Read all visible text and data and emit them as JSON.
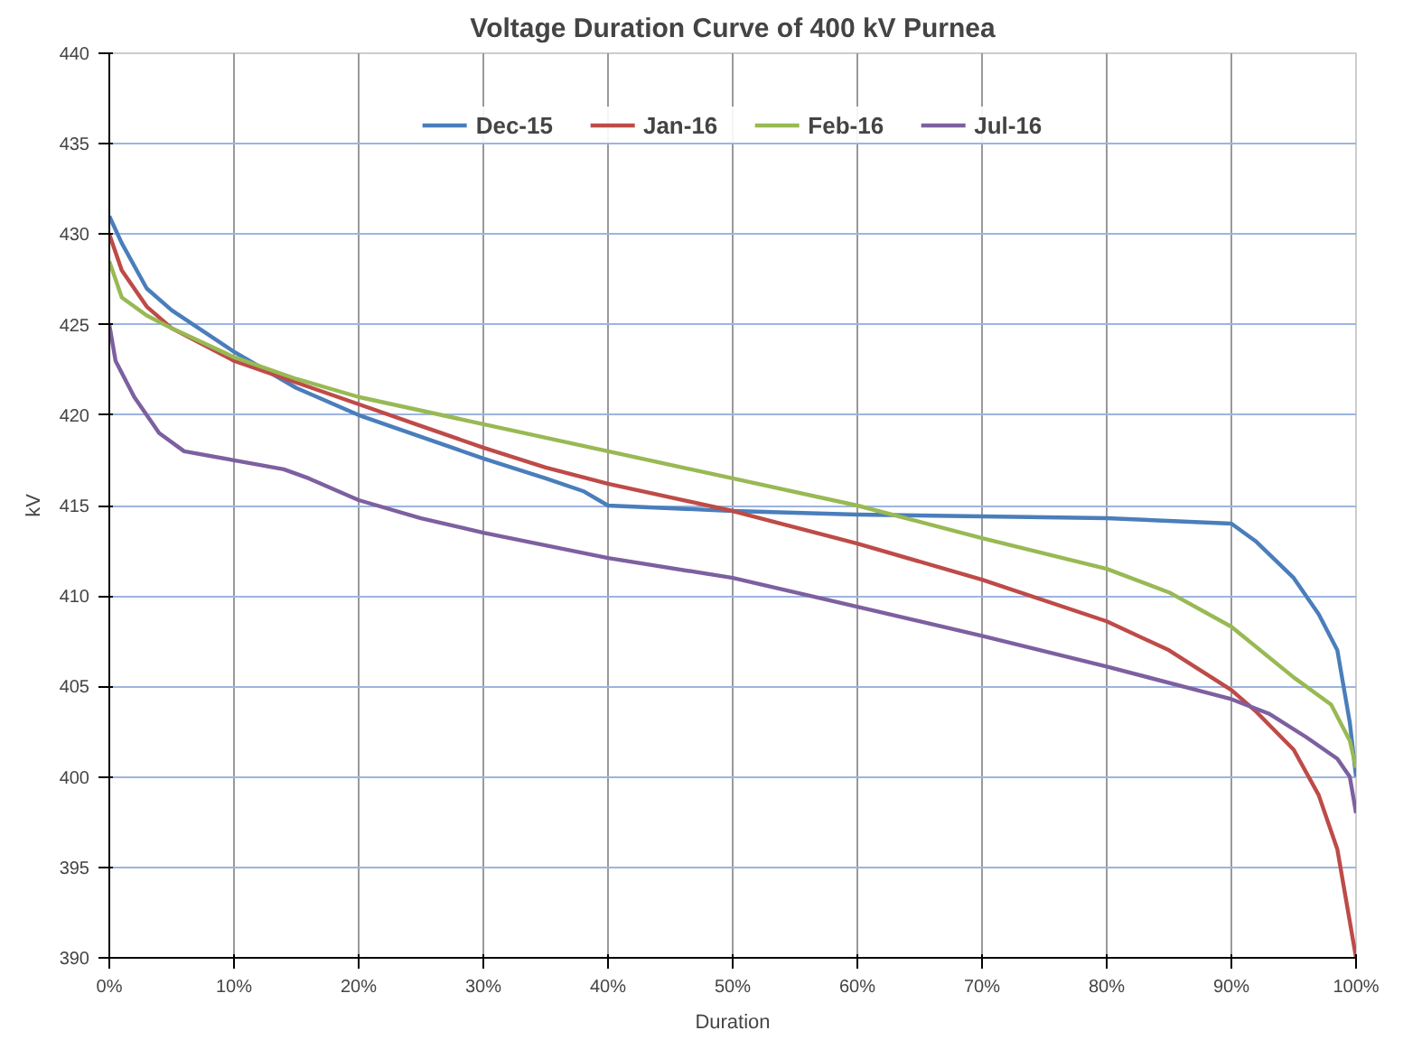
{
  "chart_data": {
    "type": "line",
    "title": "Voltage Duration Curve of 400 kV Purnea",
    "xlabel": "Duration",
    "ylabel": "kV",
    "xlim": [
      0,
      100
    ],
    "ylim": [
      390,
      440
    ],
    "xticks": [
      {
        "value": 0,
        "label": "0%"
      },
      {
        "value": 10,
        "label": "10%"
      },
      {
        "value": 20,
        "label": "20%"
      },
      {
        "value": 30,
        "label": "30%"
      },
      {
        "value": 40,
        "label": "40%"
      },
      {
        "value": 50,
        "label": "50%"
      },
      {
        "value": 60,
        "label": "60%"
      },
      {
        "value": 70,
        "label": "70%"
      },
      {
        "value": 80,
        "label": "80%"
      },
      {
        "value": 90,
        "label": "90%"
      },
      {
        "value": 100,
        "label": "100%"
      }
    ],
    "yticks": [
      390,
      395,
      400,
      405,
      410,
      415,
      420,
      425,
      430,
      435,
      440
    ],
    "grid": true,
    "legend": "top",
    "marker": "none",
    "line_style": "solid",
    "series": [
      {
        "name": "Dec-15",
        "color": "#4a7ebb",
        "x": [
          0,
          1,
          3,
          5,
          10,
          15,
          20,
          25,
          30,
          35,
          38,
          40,
          50,
          60,
          70,
          80,
          90,
          92,
          95,
          97,
          98.5,
          99.5,
          100
        ],
        "values": [
          431,
          429.5,
          427,
          425.8,
          423.5,
          421.5,
          420,
          418.8,
          417.6,
          416.5,
          415.8,
          415,
          414.7,
          414.5,
          414.4,
          414.3,
          414,
          413,
          411,
          409,
          407,
          403,
          400
        ]
      },
      {
        "name": "Jan-16",
        "color": "#be4b48",
        "x": [
          0,
          1,
          3,
          5,
          10,
          15,
          20,
          25,
          30,
          35,
          40,
          50,
          60,
          70,
          80,
          85,
          90,
          92,
          95,
          97,
          98.5,
          99.5,
          100
        ],
        "values": [
          430,
          428,
          426,
          424.8,
          423,
          421.8,
          420.6,
          419.4,
          418.2,
          417.1,
          416.2,
          414.7,
          412.9,
          410.9,
          408.6,
          407,
          404.8,
          403.6,
          401.5,
          399,
          396,
          392,
          390
        ]
      },
      {
        "name": "Feb-16",
        "color": "#98b954",
        "x": [
          0,
          1,
          3,
          5,
          10,
          15,
          20,
          30,
          40,
          50,
          60,
          70,
          80,
          85,
          90,
          95,
          98,
          99.5,
          100
        ],
        "values": [
          428.5,
          426.5,
          425.5,
          424.8,
          423.2,
          422,
          421,
          419.5,
          418,
          416.5,
          415,
          413.2,
          411.5,
          410.2,
          408.3,
          405.5,
          404,
          402,
          400.5
        ]
      },
      {
        "name": "Jul-16",
        "color": "#7d60a0",
        "x": [
          0,
          0.5,
          2,
          4,
          6,
          10,
          14,
          16,
          20,
          25,
          30,
          40,
          50,
          60,
          70,
          80,
          90,
          93,
          96,
          98.5,
          99.5,
          100
        ],
        "values": [
          425,
          423,
          421,
          419,
          418,
          417.5,
          417,
          416.5,
          415.3,
          414.3,
          413.5,
          412.1,
          411,
          409.4,
          407.8,
          406.1,
          404.3,
          403.5,
          402.2,
          401,
          400,
          398
        ]
      }
    ]
  }
}
